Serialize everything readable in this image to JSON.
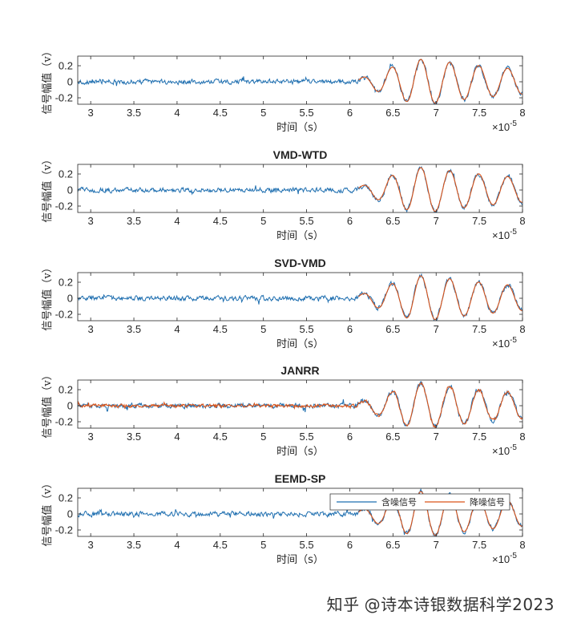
{
  "chart_data": [
    {
      "type": "line",
      "title": "",
      "xlabel": "时间（s）",
      "ylabel": "信号幅值（v）",
      "xlim": [
        2.85,
        8.0
      ],
      "ylim": [
        -0.28,
        0.32
      ],
      "x_ticks": [
        "3",
        "3.5",
        "4",
        "4.5",
        "5",
        "5.5",
        "6",
        "6.5",
        "7",
        "7.5",
        "8"
      ],
      "y_ticks": [
        "0.2",
        "0",
        "-0.2"
      ],
      "x_multiplier": "×10",
      "x_exponent": "-5",
      "legend": null,
      "series": [
        {
          "name": "含噪信号",
          "color": "#1f6fb0",
          "noise": 0.045
        },
        {
          "name": "降噪信号",
          "color": "#d95319",
          "noise": 0.0,
          "onset": 6.1
        }
      ]
    },
    {
      "type": "line",
      "title": "VMD-WTD",
      "xlabel": "时间（s）",
      "ylabel": "信号幅值（v）",
      "xlim": [
        2.85,
        8.0
      ],
      "ylim": [
        -0.28,
        0.32
      ],
      "x_ticks": [
        "3",
        "3.5",
        "4",
        "4.5",
        "5",
        "5.5",
        "6",
        "6.5",
        "7",
        "7.5",
        "8"
      ],
      "y_ticks": [
        "0.2",
        "0",
        "-0.2"
      ],
      "x_multiplier": "×10",
      "x_exponent": "-5",
      "legend": null,
      "series": [
        {
          "name": "含噪信号",
          "color": "#1f6fb0",
          "noise": 0.045
        },
        {
          "name": "降噪信号",
          "color": "#d95319",
          "noise": 0.0,
          "onset": 6.1
        }
      ]
    },
    {
      "type": "line",
      "title": "SVD-VMD",
      "xlabel": "时间（s）",
      "ylabel": "信号幅值（v）",
      "xlim": [
        2.85,
        8.0
      ],
      "ylim": [
        -0.28,
        0.32
      ],
      "x_ticks": [
        "3",
        "3.5",
        "4",
        "4.5",
        "5",
        "5.5",
        "6",
        "6.5",
        "7",
        "7.5",
        "8"
      ],
      "y_ticks": [
        "0.2",
        "0",
        "-0.2"
      ],
      "x_multiplier": "×10",
      "x_exponent": "-5",
      "legend": null,
      "series": [
        {
          "name": "含噪信号",
          "color": "#1f6fb0",
          "noise": 0.045
        },
        {
          "name": "降噪信号",
          "color": "#d95319",
          "noise": 0.0,
          "onset": 6.1
        }
      ]
    },
    {
      "type": "line",
      "title": "JANRR",
      "xlabel": "时间（s）",
      "ylabel": "信号幅值（v）",
      "xlim": [
        2.85,
        8.0
      ],
      "ylim": [
        -0.28,
        0.32
      ],
      "x_ticks": [
        "3",
        "3.5",
        "4",
        "4.5",
        "5",
        "5.5",
        "6",
        "6.5",
        "7",
        "7.5",
        "8"
      ],
      "y_ticks": [
        "0.2",
        "0",
        "-0.2"
      ],
      "x_multiplier": "×10",
      "x_exponent": "-5",
      "legend": null,
      "series": [
        {
          "name": "含噪信号",
          "color": "#1f6fb0",
          "noise": 0.045
        },
        {
          "name": "降噪信号",
          "color": "#d95319",
          "noise": 0.03,
          "onset": 2.85
        }
      ]
    },
    {
      "type": "line",
      "title": "EEMD-SP",
      "xlabel": "时间（s）",
      "ylabel": "信号幅值（v）",
      "xlim": [
        2.85,
        8.0
      ],
      "ylim": [
        -0.28,
        0.32
      ],
      "x_ticks": [
        "3",
        "3.5",
        "4",
        "4.5",
        "5",
        "5.5",
        "6",
        "6.5",
        "7",
        "7.5",
        "8"
      ],
      "y_ticks": [
        "0.2",
        "0",
        "-0.2"
      ],
      "x_multiplier": "×10",
      "x_exponent": "-5",
      "legend": {
        "entries": [
          "含噪信号",
          "降噪信号"
        ],
        "placement": "top-right"
      },
      "series": [
        {
          "name": "含噪信号",
          "color": "#1f6fb0",
          "noise": 0.045
        },
        {
          "name": "降噪信号",
          "color": "#d95319",
          "noise": 0.0,
          "onset": 6.1
        }
      ]
    }
  ],
  "watermark": {
    "site": "知乎",
    "handle": "@诗本诗银数据科学2023"
  }
}
